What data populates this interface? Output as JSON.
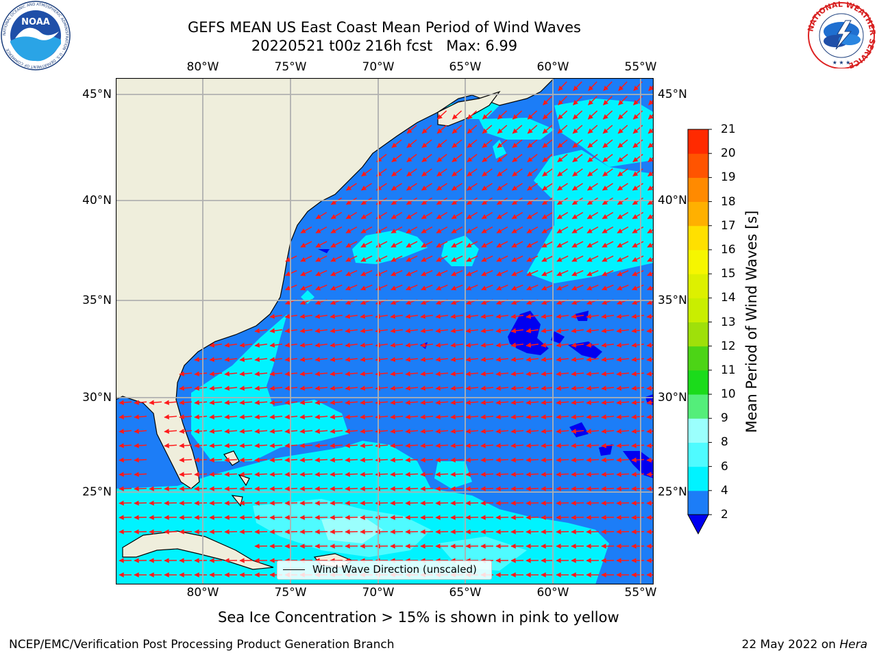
{
  "title": {
    "line1": "GEFS MEAN US East Coast Mean Period of Wind Waves",
    "line2": "20220521 t00z 216h fcst   Max: 6.99"
  },
  "map": {
    "lon_labels": [
      "80°W",
      "75°W",
      "70°W",
      "65°W",
      "60°W",
      "55°W"
    ],
    "lat_labels": [
      "45°N",
      "40°N",
      "35°N",
      "30°N",
      "25°N"
    ],
    "extent": {
      "lon": [
        -85,
        -54.5
      ],
      "lat": [
        20,
        46
      ]
    },
    "land_color": "#efeedc",
    "arrow_color": "#ff1a1a",
    "grid_color": "#b0b0b0"
  },
  "legend": {
    "label": "Wind Wave Direction (unscaled)"
  },
  "colorbar": {
    "label": "Mean Period of Wind Waves [s]",
    "ticks": [
      "2",
      "4",
      "6",
      "8",
      "9",
      "10",
      "11",
      "12",
      "13",
      "14",
      "15",
      "16",
      "17",
      "18",
      "19",
      "20",
      "21"
    ],
    "colors": [
      "#1c7df7",
      "#00f3ff",
      "#4ffbff",
      "#9bfffd",
      "#54ee7a",
      "#1bdb1b",
      "#4cd416",
      "#9fe00a",
      "#c9ee00",
      "#ddf000",
      "#f6f600",
      "#ffe000",
      "#ffb000",
      "#ff8a00",
      "#ff5400",
      "#ff2a00",
      "#ff0000"
    ],
    "extend_color": "#0000f0"
  },
  "subtitle": "Sea Ice Concentration > 15% is shown in pink to yellow",
  "footer": {
    "left": "NCEP/EMC/Verification Post Processing Product Generation Branch",
    "date": "22 May 2022 on ",
    "host": "Hera"
  },
  "logos": {
    "noaa_text": "NOAA",
    "noaa_ring": "NATIONAL OCEANIC AND ATMOSPHERIC ADMINISTRATION · U.S. DEPARTMENT OF COMMERCE",
    "nws_ring": "NATIONAL WEATHER SERVICE"
  }
}
